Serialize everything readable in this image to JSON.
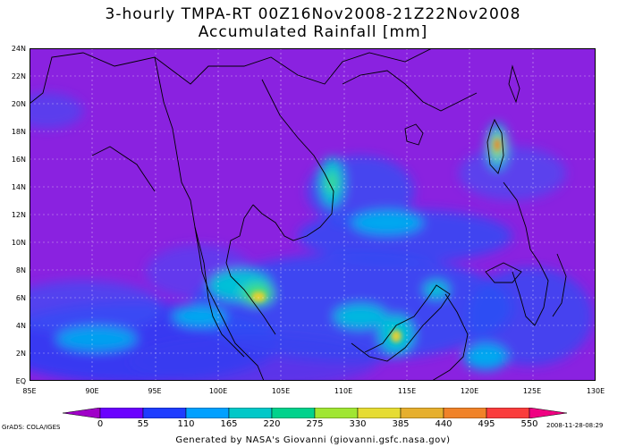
{
  "title": {
    "line1": "3-hourly TMPA-RT 00Z16Nov2008-21Z22Nov2008",
    "line2": "Accumulated Rainfall [mm]"
  },
  "map": {
    "lon_range": [
      85,
      130
    ],
    "lat_range": [
      0,
      24
    ],
    "x_ticks": [
      "85E",
      "90E",
      "95E",
      "100E",
      "105E",
      "110E",
      "115E",
      "120E",
      "125E",
      "130E"
    ],
    "y_ticks": [
      "EQ",
      "2N",
      "4N",
      "6N",
      "8N",
      "10N",
      "12N",
      "14N",
      "16N",
      "18N",
      "20N",
      "22N",
      "24N"
    ],
    "grid": true,
    "background_color": "#8a22e0"
  },
  "colorbar": {
    "labels": [
      "0",
      "55",
      "110",
      "165",
      "220",
      "275",
      "330",
      "385",
      "440",
      "495",
      "550"
    ],
    "colors": [
      "#a000c8",
      "#6a00ff",
      "#1e3cff",
      "#00a0ff",
      "#00c8c8",
      "#00d28c",
      "#a0e632",
      "#e6dc32",
      "#e6af2d",
      "#f08228",
      "#fa3c3c",
      "#f00082"
    ]
  },
  "footer": {
    "grads_label": "GrADS: COLA/IGES",
    "date_stamp": "2008-11-28-08:29",
    "credit": "Generated by NASA's Giovanni (giovanni.gsfc.nasa.gov)"
  }
}
